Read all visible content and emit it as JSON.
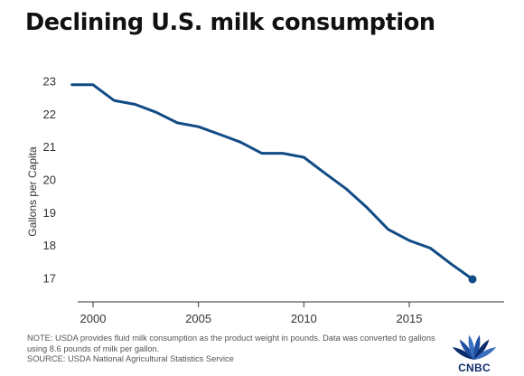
{
  "chart_data": {
    "type": "line",
    "title": "Declining U.S. milk consumption",
    "ylabel": "Gallons per Capita",
    "xlabel": "",
    "xlim": [
      1998.5,
      2019.5
    ],
    "ylim": [
      16.5,
      23.5
    ],
    "x_ticks": [
      2000,
      2005,
      2010,
      2015
    ],
    "y_ticks": [
      17,
      18,
      19,
      20,
      21,
      22,
      23
    ],
    "grid": false,
    "legend": "none",
    "line_color": "#114b85",
    "series": [
      {
        "x": [
          1999,
          2000,
          2001,
          2002,
          2003,
          2004,
          2005,
          2006,
          2007,
          2008,
          2009,
          2010,
          2011,
          2012,
          2013,
          2014,
          2015,
          2016,
          2017,
          2018
        ],
        "values": [
          22.9,
          22.9,
          22.42,
          22.3,
          22.06,
          21.74,
          21.62,
          21.39,
          21.15,
          20.81,
          20.81,
          20.69,
          20.2,
          19.73,
          19.15,
          18.49,
          18.15,
          17.92,
          17.43,
          16.97
        ]
      }
    ],
    "end_marker": true
  },
  "notes": {
    "note": "NOTE: USDA provides fluid milk consumption as the product weight in pounds. Data was converted to gallons using 8.6 pounds of milk per gallon.",
    "source": "SOURCE: USDA National Agricultural Statistics Service"
  },
  "logo": {
    "text": "CNBC",
    "peacock_colors": [
      "#0c2d6b",
      "#1f4f9e",
      "#3a6fc0",
      "#1f4f9e",
      "#0c2d6b",
      "#3a6fc0"
    ]
  }
}
